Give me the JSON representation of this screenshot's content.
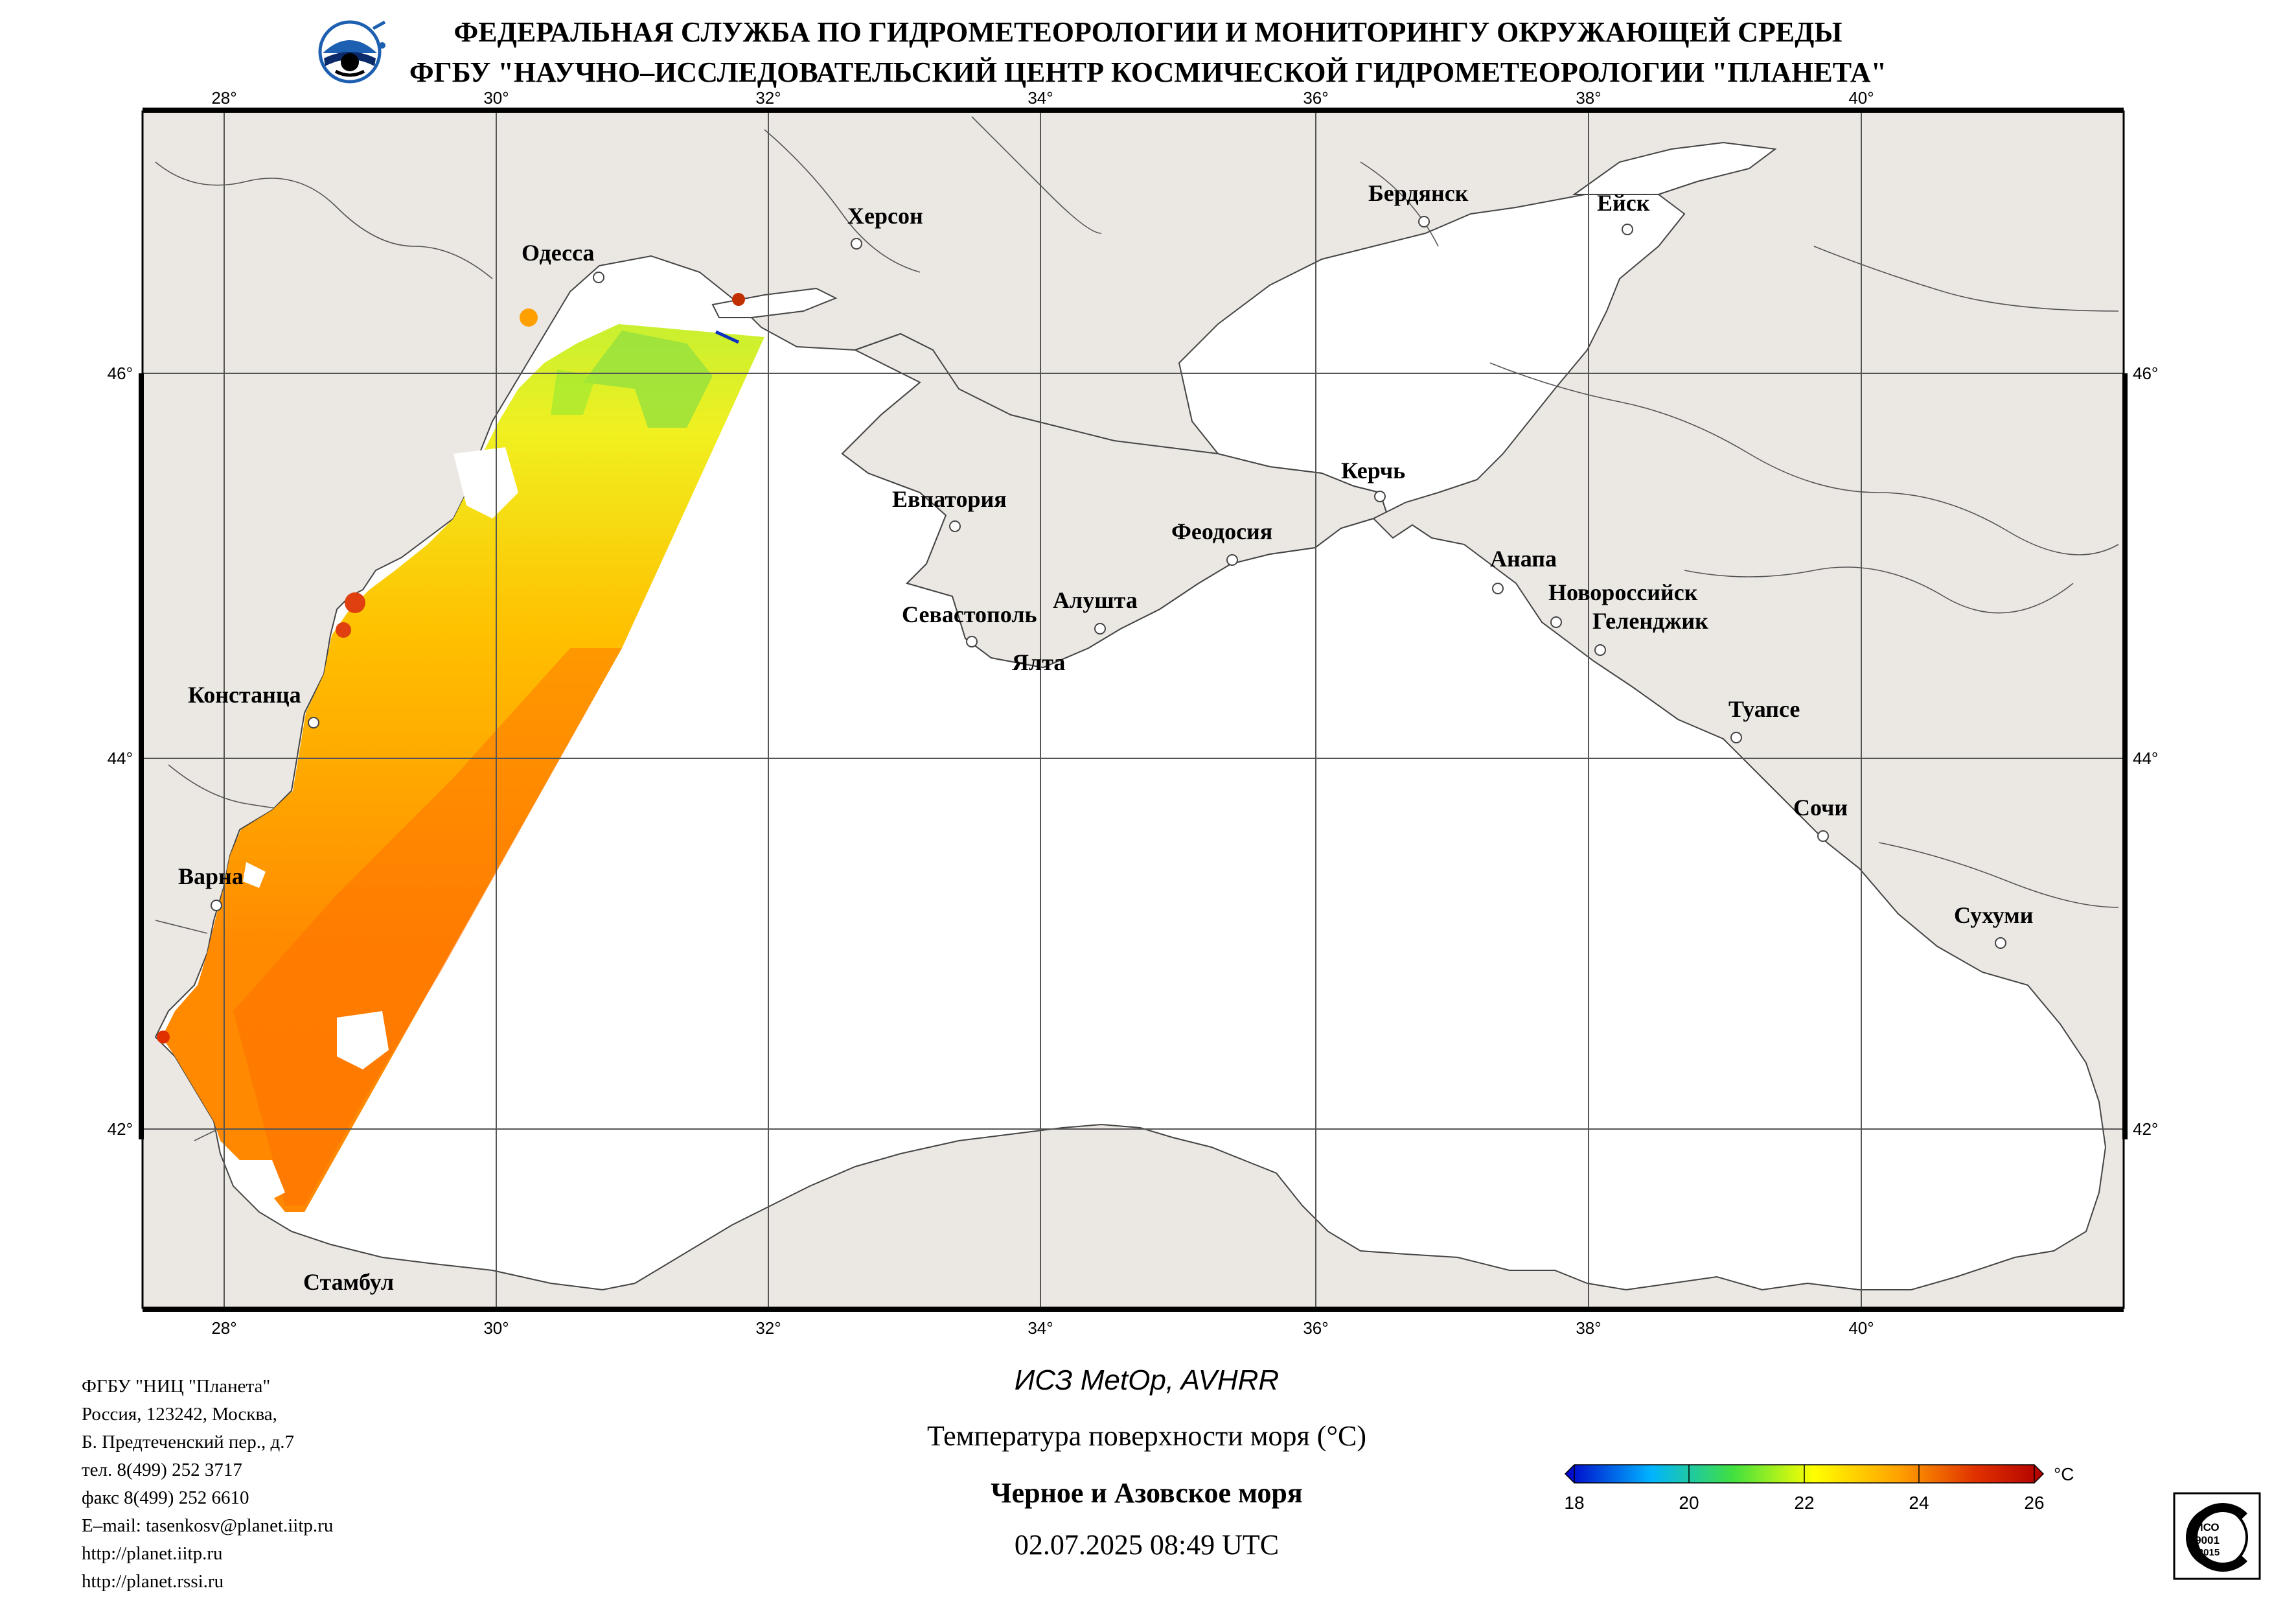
{
  "header": {
    "line1": "ФЕДЕРАЛЬНАЯ СЛУЖБА ПО ГИДРОМЕТЕОРОЛОГИИ И МОНИТОРИНГУ ОКРУЖАЮЩЕЙ СРЕДЫ",
    "line2": "ФГБУ \"НАУЧНО–ИССЛЕДОВАТЕЛЬСКИЙ ЦЕНТР КОСМИЧЕСКОЙ ГИДРОМЕТЕОРОЛОГИИ \"ПЛАНЕТА\""
  },
  "map": {
    "lon_labels": [
      "28°",
      "30°",
      "32°",
      "34°",
      "36°",
      "38°",
      "40°"
    ],
    "lat_labels": [
      "46°",
      "44°",
      "42°"
    ],
    "colors": {
      "land": "#ebe8e4",
      "sea": "#ffffff",
      "coast": "#444444",
      "grid": "#555555"
    },
    "cities": [
      {
        "name": "Одесса"
      },
      {
        "name": "Херсон"
      },
      {
        "name": "Бердянск"
      },
      {
        "name": "Ейск"
      },
      {
        "name": "Евпатория"
      },
      {
        "name": "Керчь"
      },
      {
        "name": "Феодосия"
      },
      {
        "name": "Анапа"
      },
      {
        "name": "Новороссийск"
      },
      {
        "name": "Геленджик"
      },
      {
        "name": "Севастополь"
      },
      {
        "name": "Алушта"
      },
      {
        "name": "Ялта"
      },
      {
        "name": "Констанца"
      },
      {
        "name": "Туапсе"
      },
      {
        "name": "Сочи"
      },
      {
        "name": "Варна"
      },
      {
        "name": "Сухуми"
      },
      {
        "name": "Стамбул"
      }
    ]
  },
  "contact": {
    "org": "ФГБУ \"НИЦ \"Планета\"",
    "addr1": "Россия, 123242, Москва,",
    "addr2": "Б. Предтеченский пер., д.7",
    "tel": "тел. 8(499) 252 3717",
    "fax": "факс 8(499) 252 6610",
    "email": "E–mail: tasenkosv@planet.iitp.ru",
    "url1": "http://planet.iitp.ru",
    "url2": "http://planet.rssi.ru"
  },
  "product": {
    "satellite": "ИСЗ MetOp, AVHRR",
    "parameter": "Температура поверхности моря (°C)",
    "region": "Черное и Азовское моря",
    "datetime": "02.07.2025 08:49 UTC"
  },
  "colorbar": {
    "unit": "°C",
    "ticks": [
      "18",
      "20",
      "22",
      "24",
      "26"
    ],
    "colors": [
      "#0000c8",
      "#00c8ff",
      "#40e040",
      "#ffff00",
      "#ffa000",
      "#e03000",
      "#b00000"
    ]
  },
  "certificate": {
    "line1": "ИСО",
    "line2": "9001",
    "line3": "-2015"
  }
}
